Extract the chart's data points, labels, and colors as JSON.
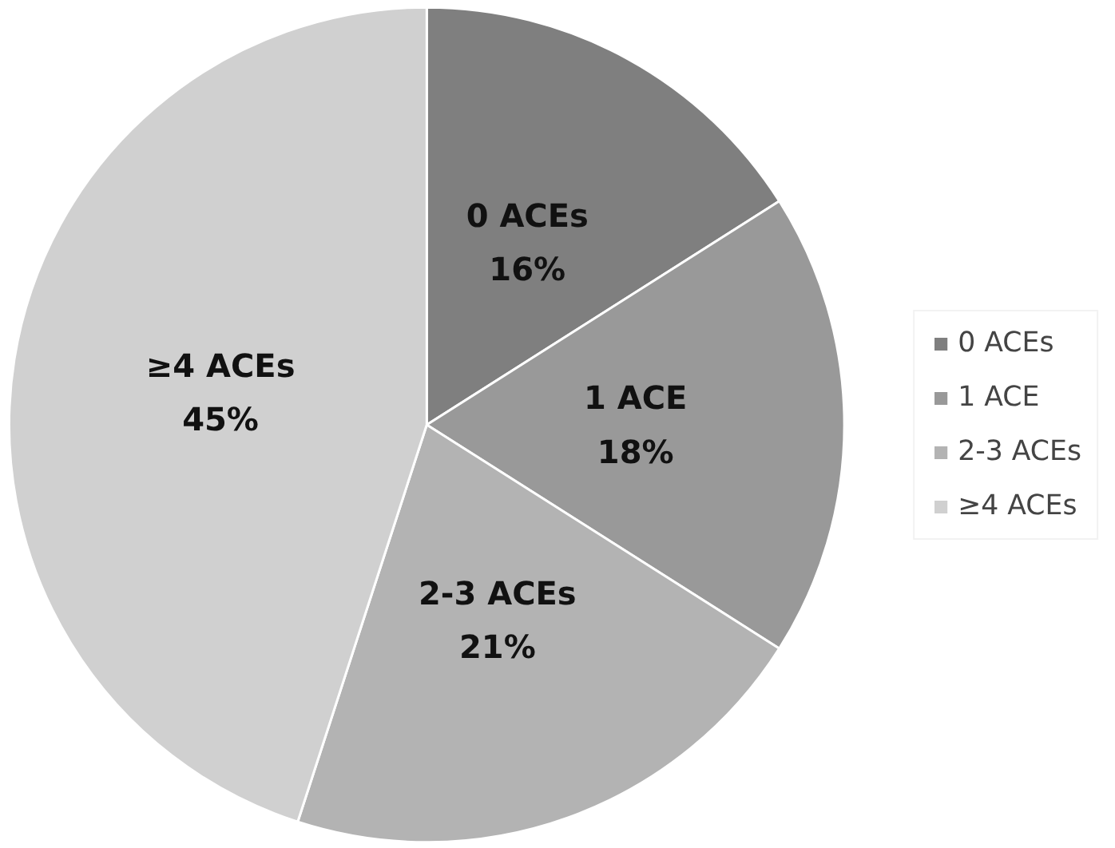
{
  "chart_data": {
    "type": "pie",
    "categories": [
      "0 ACEs",
      "1 ACE",
      "2-3 ACEs",
      "≥4 ACEs"
    ],
    "values": [
      16,
      18,
      21,
      45
    ],
    "value_labels": [
      "16%",
      "18%",
      "21%",
      "45%"
    ],
    "colors": [
      "#7f7f7f",
      "#999999",
      "#b3b3b3",
      "#d0d0d0"
    ],
    "legend": "right"
  }
}
